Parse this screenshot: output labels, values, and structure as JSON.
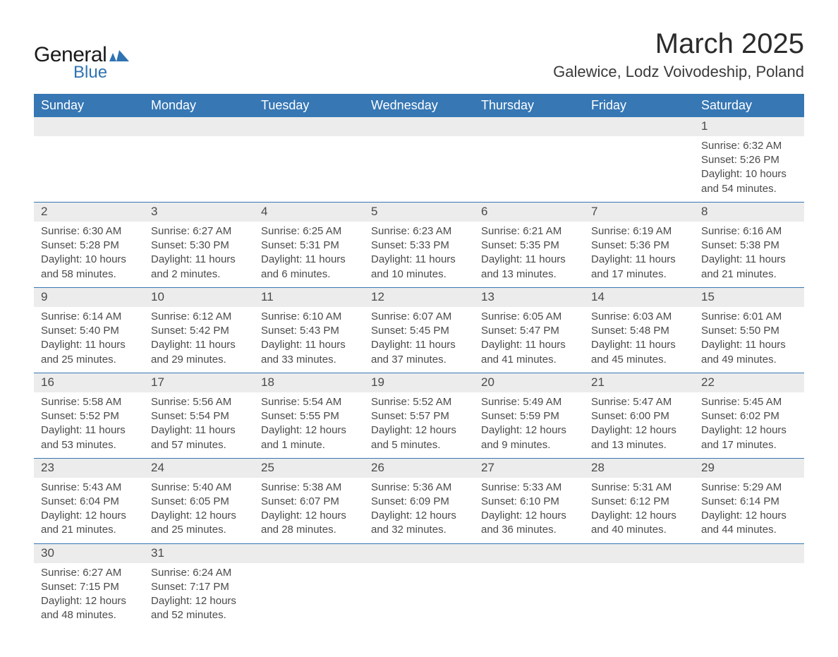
{
  "brand": {
    "word1": "General",
    "word2": "Blue",
    "accent_color": "#2f73b3"
  },
  "title": "March 2025",
  "location": "Galewice, Lodz Voivodeship, Poland",
  "colors": {
    "header_bg": "#3677b4",
    "header_text": "#ffffff",
    "daynum_bg": "#ececec",
    "row_border": "#3677b4",
    "body_text": "#4a4a4a",
    "page_bg": "#ffffff"
  },
  "typography": {
    "month_title_fontsize": 40,
    "location_fontsize": 22,
    "weekday_fontsize": 18,
    "daynum_fontsize": 17,
    "cell_fontsize": 15
  },
  "weekdays": [
    "Sunday",
    "Monday",
    "Tuesday",
    "Wednesday",
    "Thursday",
    "Friday",
    "Saturday"
  ],
  "weeks": [
    [
      null,
      null,
      null,
      null,
      null,
      null,
      {
        "n": 1,
        "sunrise": "6:32 AM",
        "sunset": "5:26 PM",
        "daylight": "10 hours and 54 minutes."
      }
    ],
    [
      {
        "n": 2,
        "sunrise": "6:30 AM",
        "sunset": "5:28 PM",
        "daylight": "10 hours and 58 minutes."
      },
      {
        "n": 3,
        "sunrise": "6:27 AM",
        "sunset": "5:30 PM",
        "daylight": "11 hours and 2 minutes."
      },
      {
        "n": 4,
        "sunrise": "6:25 AM",
        "sunset": "5:31 PM",
        "daylight": "11 hours and 6 minutes."
      },
      {
        "n": 5,
        "sunrise": "6:23 AM",
        "sunset": "5:33 PM",
        "daylight": "11 hours and 10 minutes."
      },
      {
        "n": 6,
        "sunrise": "6:21 AM",
        "sunset": "5:35 PM",
        "daylight": "11 hours and 13 minutes."
      },
      {
        "n": 7,
        "sunrise": "6:19 AM",
        "sunset": "5:36 PM",
        "daylight": "11 hours and 17 minutes."
      },
      {
        "n": 8,
        "sunrise": "6:16 AM",
        "sunset": "5:38 PM",
        "daylight": "11 hours and 21 minutes."
      }
    ],
    [
      {
        "n": 9,
        "sunrise": "6:14 AM",
        "sunset": "5:40 PM",
        "daylight": "11 hours and 25 minutes."
      },
      {
        "n": 10,
        "sunrise": "6:12 AM",
        "sunset": "5:42 PM",
        "daylight": "11 hours and 29 minutes."
      },
      {
        "n": 11,
        "sunrise": "6:10 AM",
        "sunset": "5:43 PM",
        "daylight": "11 hours and 33 minutes."
      },
      {
        "n": 12,
        "sunrise": "6:07 AM",
        "sunset": "5:45 PM",
        "daylight": "11 hours and 37 minutes."
      },
      {
        "n": 13,
        "sunrise": "6:05 AM",
        "sunset": "5:47 PM",
        "daylight": "11 hours and 41 minutes."
      },
      {
        "n": 14,
        "sunrise": "6:03 AM",
        "sunset": "5:48 PM",
        "daylight": "11 hours and 45 minutes."
      },
      {
        "n": 15,
        "sunrise": "6:01 AM",
        "sunset": "5:50 PM",
        "daylight": "11 hours and 49 minutes."
      }
    ],
    [
      {
        "n": 16,
        "sunrise": "5:58 AM",
        "sunset": "5:52 PM",
        "daylight": "11 hours and 53 minutes."
      },
      {
        "n": 17,
        "sunrise": "5:56 AM",
        "sunset": "5:54 PM",
        "daylight": "11 hours and 57 minutes."
      },
      {
        "n": 18,
        "sunrise": "5:54 AM",
        "sunset": "5:55 PM",
        "daylight": "12 hours and 1 minute."
      },
      {
        "n": 19,
        "sunrise": "5:52 AM",
        "sunset": "5:57 PM",
        "daylight": "12 hours and 5 minutes."
      },
      {
        "n": 20,
        "sunrise": "5:49 AM",
        "sunset": "5:59 PM",
        "daylight": "12 hours and 9 minutes."
      },
      {
        "n": 21,
        "sunrise": "5:47 AM",
        "sunset": "6:00 PM",
        "daylight": "12 hours and 13 minutes."
      },
      {
        "n": 22,
        "sunrise": "5:45 AM",
        "sunset": "6:02 PM",
        "daylight": "12 hours and 17 minutes."
      }
    ],
    [
      {
        "n": 23,
        "sunrise": "5:43 AM",
        "sunset": "6:04 PM",
        "daylight": "12 hours and 21 minutes."
      },
      {
        "n": 24,
        "sunrise": "5:40 AM",
        "sunset": "6:05 PM",
        "daylight": "12 hours and 25 minutes."
      },
      {
        "n": 25,
        "sunrise": "5:38 AM",
        "sunset": "6:07 PM",
        "daylight": "12 hours and 28 minutes."
      },
      {
        "n": 26,
        "sunrise": "5:36 AM",
        "sunset": "6:09 PM",
        "daylight": "12 hours and 32 minutes."
      },
      {
        "n": 27,
        "sunrise": "5:33 AM",
        "sunset": "6:10 PM",
        "daylight": "12 hours and 36 minutes."
      },
      {
        "n": 28,
        "sunrise": "5:31 AM",
        "sunset": "6:12 PM",
        "daylight": "12 hours and 40 minutes."
      },
      {
        "n": 29,
        "sunrise": "5:29 AM",
        "sunset": "6:14 PM",
        "daylight": "12 hours and 44 minutes."
      }
    ],
    [
      {
        "n": 30,
        "sunrise": "6:27 AM",
        "sunset": "7:15 PM",
        "daylight": "12 hours and 48 minutes."
      },
      {
        "n": 31,
        "sunrise": "6:24 AM",
        "sunset": "7:17 PM",
        "daylight": "12 hours and 52 minutes."
      },
      null,
      null,
      null,
      null,
      null
    ]
  ],
  "labels": {
    "sunrise": "Sunrise: ",
    "sunset": "Sunset: ",
    "daylight": "Daylight: "
  }
}
